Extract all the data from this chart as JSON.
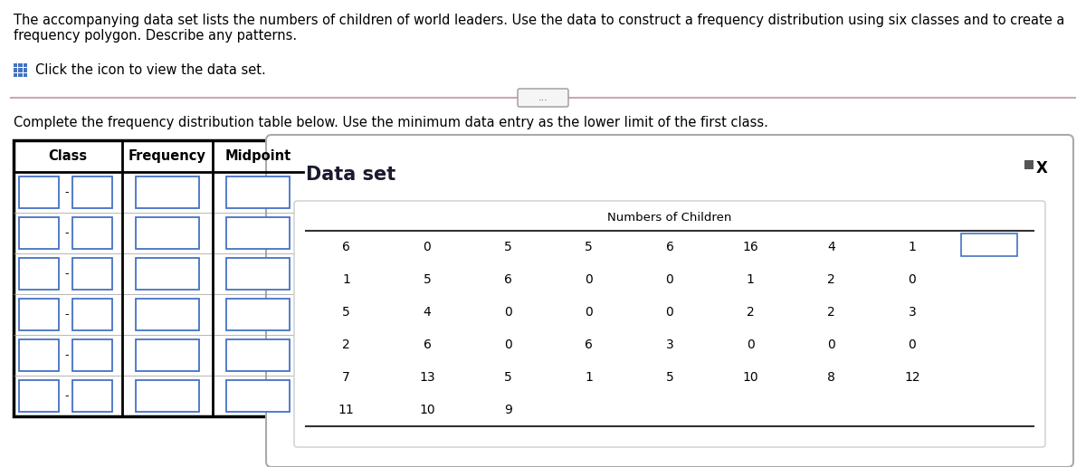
{
  "title_line1": "The accompanying data set lists the numbers of children of world leaders. Use the data to construct a frequency distribution using six classes and to create a",
  "title_line2": "frequency polygon. Describe any patterns.",
  "icon_text": "Click the icon to view the data set.",
  "instruction_text": "Complete the frequency distribution table below. Use the minimum data entry as the lower limit of the first class.",
  "table_headers": [
    "Class",
    "Frequency",
    "Midpoint"
  ],
  "num_rows": 6,
  "dataset_title": "Data set",
  "dataset_header": "Numbers of Children",
  "dataset_rows": [
    [
      6,
      0,
      5,
      5,
      6,
      16,
      4,
      1
    ],
    [
      1,
      5,
      6,
      0,
      0,
      1,
      2,
      0
    ],
    [
      5,
      4,
      0,
      0,
      0,
      2,
      2,
      3
    ],
    [
      2,
      6,
      0,
      6,
      3,
      0,
      0,
      0
    ],
    [
      7,
      13,
      5,
      1,
      5,
      10,
      8,
      12
    ],
    [
      11,
      10,
      9,
      null,
      null,
      null,
      null,
      null
    ]
  ],
  "bg_color": "#ffffff",
  "text_color": "#000000",
  "table_border_color": "#000000",
  "cell_border_color": "#4472c4",
  "divider_color": "#c8a8b8",
  "icon_color": "#4472c4",
  "panel_border_color": "#aaaaaa",
  "title_fontsize": 10.5,
  "instruction_fontsize": 10.5,
  "table_header_fontsize": 10.5,
  "dataset_title_fontsize": 15,
  "dataset_header_fontsize": 9.5,
  "dataset_data_fontsize": 10,
  "dots_button_text": "...",
  "minus_symbol": "-",
  "x_symbol": "X"
}
